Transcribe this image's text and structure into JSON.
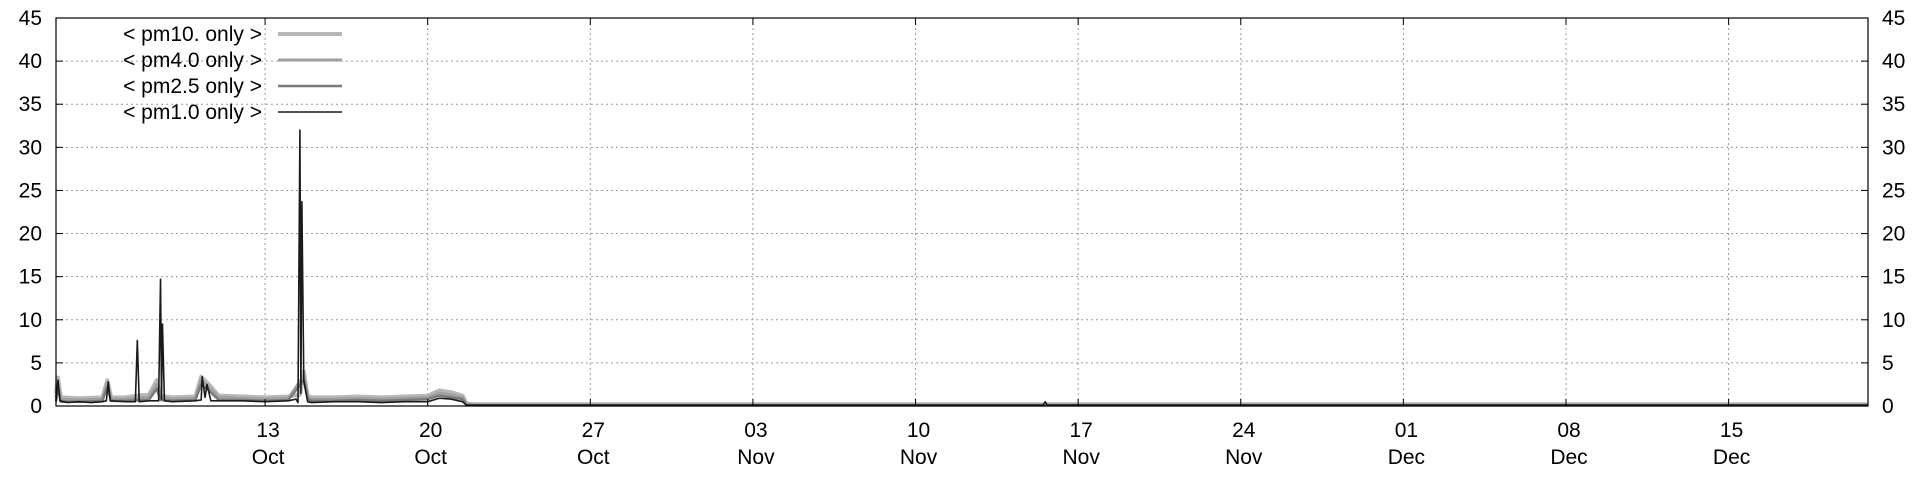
{
  "chart_data": {
    "type": "line",
    "title": "",
    "xlabel": "",
    "ylabel": "",
    "ylim": [
      0,
      45
    ],
    "y_ticks": [
      "0",
      "5",
      "10",
      "15",
      "20",
      "25",
      "30",
      "35",
      "40",
      "45"
    ],
    "x_range": {
      "start": "2023-10-04",
      "end": "2023-12-21"
    },
    "x_ticks": [
      {
        "date": "2023-10-13",
        "day": "13",
        "month": "Oct"
      },
      {
        "date": "2023-10-20",
        "day": "20",
        "month": "Oct"
      },
      {
        "date": "2023-10-27",
        "day": "27",
        "month": "Oct"
      },
      {
        "date": "2023-11-03",
        "day": "03",
        "month": "Nov"
      },
      {
        "date": "2023-11-10",
        "day": "10",
        "month": "Nov"
      },
      {
        "date": "2023-11-17",
        "day": "17",
        "month": "Nov"
      },
      {
        "date": "2023-11-24",
        "day": "24",
        "month": "Nov"
      },
      {
        "date": "2023-12-01",
        "day": "01",
        "month": "Dec"
      },
      {
        "date": "2023-12-08",
        "day": "08",
        "month": "Dec"
      },
      {
        "date": "2023-12-15",
        "day": "15",
        "month": "Dec"
      }
    ],
    "grid": true,
    "legend_position": "top-left",
    "series": [
      {
        "name": "< pm10. only >",
        "color": "#b8b8b8",
        "points": [
          [
            "2023-10-04 00:00",
            1.5
          ],
          [
            "2023-10-04 02:00",
            3.3
          ],
          [
            "2023-10-04 05:00",
            1.0
          ],
          [
            "2023-10-05 00:00",
            0.9
          ],
          [
            "2023-10-06 00:00",
            1.0
          ],
          [
            "2023-10-06 05:00",
            3.0
          ],
          [
            "2023-10-06 09:00",
            1.0
          ],
          [
            "2023-10-07 00:00",
            1.0
          ],
          [
            "2023-10-07 12:00",
            1.2
          ],
          [
            "2023-10-08 00:00",
            1.3
          ],
          [
            "2023-10-08 08:00",
            3.0
          ],
          [
            "2023-10-08 12:00",
            1.2
          ],
          [
            "2023-10-09 00:00",
            1.0
          ],
          [
            "2023-10-10 00:00",
            1.1
          ],
          [
            "2023-10-10 06:00",
            3.4
          ],
          [
            "2023-10-10 14:00",
            2.5
          ],
          [
            "2023-10-11 00:00",
            1.2
          ],
          [
            "2023-10-12 00:00",
            1.1
          ],
          [
            "2023-10-13 00:00",
            1.0
          ],
          [
            "2023-10-14 00:00",
            1.1
          ],
          [
            "2023-10-14 12:00",
            1.3
          ],
          [
            "2023-10-14 16:00",
            4.0
          ],
          [
            "2023-10-14 20:00",
            1.2
          ],
          [
            "2023-10-15 00:00",
            1.0
          ],
          [
            "2023-10-16 00:00",
            1.0
          ],
          [
            "2023-10-17 00:00",
            1.1
          ],
          [
            "2023-10-18 00:00",
            1.0
          ],
          [
            "2023-10-19 00:00",
            1.1
          ],
          [
            "2023-10-20 00:00",
            1.2
          ],
          [
            "2023-10-20 12:00",
            1.8
          ],
          [
            "2023-10-21 00:00",
            1.6
          ],
          [
            "2023-10-21 12:00",
            1.2
          ],
          [
            "2023-10-21 16:00",
            0.3
          ],
          [
            "2023-10-22 00:00",
            0.2
          ],
          [
            "2023-12-21 00:00",
            0.2
          ]
        ]
      },
      {
        "name": "< pm4.0 only >",
        "color": "#a0a0a0",
        "points": [
          [
            "2023-10-04 00:00",
            1.0
          ],
          [
            "2023-10-04 02:00",
            2.8
          ],
          [
            "2023-10-04 05:00",
            0.8
          ],
          [
            "2023-10-05 00:00",
            0.7
          ],
          [
            "2023-10-06 00:00",
            0.8
          ],
          [
            "2023-10-06 05:00",
            2.6
          ],
          [
            "2023-10-06 09:00",
            0.8
          ],
          [
            "2023-10-07 00:00",
            0.8
          ],
          [
            "2023-10-08 00:00",
            1.0
          ],
          [
            "2023-10-08 08:00",
            2.5
          ],
          [
            "2023-10-08 12:00",
            1.0
          ],
          [
            "2023-10-09 00:00",
            0.8
          ],
          [
            "2023-10-10 00:00",
            0.9
          ],
          [
            "2023-10-10 06:00",
            3.0
          ],
          [
            "2023-10-10 14:00",
            2.2
          ],
          [
            "2023-10-11 00:00",
            1.0
          ],
          [
            "2023-10-12 00:00",
            0.9
          ],
          [
            "2023-10-13 00:00",
            0.8
          ],
          [
            "2023-10-14 00:00",
            0.9
          ],
          [
            "2023-10-14 16:00",
            3.5
          ],
          [
            "2023-10-14 20:00",
            1.0
          ],
          [
            "2023-10-15 00:00",
            0.8
          ],
          [
            "2023-10-16 00:00",
            0.8
          ],
          [
            "2023-10-17 00:00",
            0.9
          ],
          [
            "2023-10-18 00:00",
            0.8
          ],
          [
            "2023-10-19 00:00",
            0.9
          ],
          [
            "2023-10-20 00:00",
            1.0
          ],
          [
            "2023-10-20 12:00",
            1.5
          ],
          [
            "2023-10-21 00:00",
            1.3
          ],
          [
            "2023-10-21 12:00",
            1.0
          ],
          [
            "2023-10-21 16:00",
            0.2
          ],
          [
            "2023-10-22 00:00",
            0.1
          ],
          [
            "2023-12-21 00:00",
            0.1
          ]
        ]
      },
      {
        "name": "< pm2.5 only >",
        "color": "#7a7a7a",
        "points": [
          [
            "2023-10-04 00:00",
            0.6
          ],
          [
            "2023-10-04 02:00",
            2.2
          ],
          [
            "2023-10-04 05:00",
            0.5
          ],
          [
            "2023-10-05 00:00",
            0.5
          ],
          [
            "2023-10-06 00:00",
            0.6
          ],
          [
            "2023-10-06 05:00",
            2.2
          ],
          [
            "2023-10-06 09:00",
            0.6
          ],
          [
            "2023-10-07 00:00",
            0.6
          ],
          [
            "2023-10-08 00:00",
            0.7
          ],
          [
            "2023-10-08 08:00",
            2.0
          ],
          [
            "2023-10-08 12:00",
            0.7
          ],
          [
            "2023-10-09 00:00",
            0.6
          ],
          [
            "2023-10-10 00:00",
            0.7
          ],
          [
            "2023-10-10 06:00",
            2.5
          ],
          [
            "2023-10-10 14:00",
            1.8
          ],
          [
            "2023-10-11 00:00",
            0.7
          ],
          [
            "2023-10-12 00:00",
            0.7
          ],
          [
            "2023-10-13 00:00",
            0.6
          ],
          [
            "2023-10-14 00:00",
            0.7
          ],
          [
            "2023-10-14 16:00",
            3.0
          ],
          [
            "2023-10-14 20:00",
            0.8
          ],
          [
            "2023-10-15 00:00",
            0.6
          ],
          [
            "2023-10-16 00:00",
            0.6
          ],
          [
            "2023-10-17 00:00",
            0.7
          ],
          [
            "2023-10-18 00:00",
            0.6
          ],
          [
            "2023-10-19 00:00",
            0.7
          ],
          [
            "2023-10-20 00:00",
            0.8
          ],
          [
            "2023-10-20 12:00",
            1.2
          ],
          [
            "2023-10-21 00:00",
            1.0
          ],
          [
            "2023-10-21 12:00",
            0.8
          ],
          [
            "2023-10-21 16:00",
            0.1
          ],
          [
            "2023-10-22 00:00",
            0.1
          ],
          [
            "2023-12-21 00:00",
            0.1
          ]
        ]
      },
      {
        "name": "< pm1.0 only >",
        "color": "#1a1a1a",
        "points": [
          [
            "2023-10-04 00:00",
            0.5
          ],
          [
            "2023-10-04 02:00",
            3.0
          ],
          [
            "2023-10-04 04:00",
            0.6
          ],
          [
            "2023-10-04 12:00",
            0.4
          ],
          [
            "2023-10-05 00:00",
            0.5
          ],
          [
            "2023-10-05 12:00",
            0.4
          ],
          [
            "2023-10-06 00:00",
            0.5
          ],
          [
            "2023-10-06 04:00",
            0.6
          ],
          [
            "2023-10-06 06:00",
            2.8
          ],
          [
            "2023-10-06 08:00",
            0.6
          ],
          [
            "2023-10-07 00:00",
            0.5
          ],
          [
            "2023-10-07 10:00",
            0.5
          ],
          [
            "2023-10-07 12:00",
            7.6
          ],
          [
            "2023-10-07 14:00",
            0.5
          ],
          [
            "2023-10-08 00:00",
            0.6
          ],
          [
            "2023-10-08 10:00",
            0.6
          ],
          [
            "2023-10-08 12:00",
            14.7
          ],
          [
            "2023-10-08 13:00",
            0.8
          ],
          [
            "2023-10-08 14:00",
            9.5
          ],
          [
            "2023-10-08 16:00",
            0.6
          ],
          [
            "2023-10-09 00:00",
            0.5
          ],
          [
            "2023-10-10 00:00",
            0.6
          ],
          [
            "2023-10-10 06:00",
            0.7
          ],
          [
            "2023-10-10 07:00",
            3.4
          ],
          [
            "2023-10-10 10:00",
            1.0
          ],
          [
            "2023-10-10 12:00",
            2.5
          ],
          [
            "2023-10-10 16:00",
            0.6
          ],
          [
            "2023-10-11 00:00",
            0.6
          ],
          [
            "2023-10-12 00:00",
            0.6
          ],
          [
            "2023-10-13 00:00",
            0.5
          ],
          [
            "2023-10-14 00:00",
            0.6
          ],
          [
            "2023-10-14 08:00",
            0.8
          ],
          [
            "2023-10-14 10:00",
            0.4
          ],
          [
            "2023-10-14 12:00",
            32.0
          ],
          [
            "2023-10-14 13:00",
            1.5
          ],
          [
            "2023-10-14 14:00",
            23.7
          ],
          [
            "2023-10-14 16:00",
            3.0
          ],
          [
            "2023-10-14 20:00",
            0.5
          ],
          [
            "2023-10-15 00:00",
            0.4
          ],
          [
            "2023-10-16 00:00",
            0.5
          ],
          [
            "2023-10-17 00:00",
            0.5
          ],
          [
            "2023-10-18 00:00",
            0.4
          ],
          [
            "2023-10-19 00:00",
            0.5
          ],
          [
            "2023-10-20 00:00",
            0.5
          ],
          [
            "2023-10-20 12:00",
            0.9
          ],
          [
            "2023-10-21 00:00",
            0.8
          ],
          [
            "2023-10-21 12:00",
            0.5
          ],
          [
            "2023-10-21 16:00",
            0.1
          ],
          [
            "2023-10-22 00:00",
            0.1
          ],
          [
            "2023-11-15 12:00",
            0.1
          ],
          [
            "2023-11-15 14:00",
            0.5
          ],
          [
            "2023-11-15 16:00",
            0.1
          ],
          [
            "2023-12-21 00:00",
            0.1
          ]
        ]
      }
    ]
  }
}
